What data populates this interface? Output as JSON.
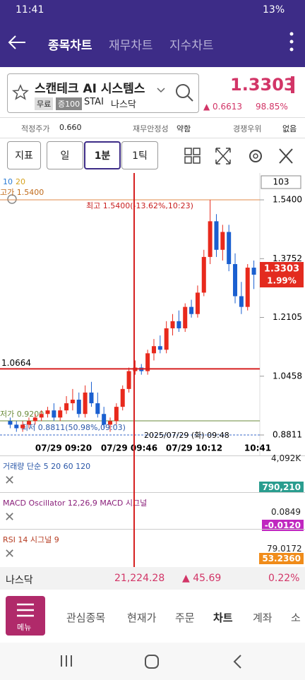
{
  "status_bar": {
    "time": "11:41",
    "battery": "13%"
  },
  "tabs": [
    "종목차트",
    "재무차트",
    "지수차트"
  ],
  "stock": {
    "name": "스캔테크 AI 시스템스",
    "badges": [
      "무료",
      "증100"
    ],
    "ticker": "STAI",
    "market": "나스닥",
    "price": "1.3303",
    "change": "▲ 0.6613",
    "change_pct": "98.85%"
  },
  "info": [
    {
      "label": "적정주가",
      "value": "0.660"
    },
    {
      "label": "재무안정성",
      "value": "약함"
    },
    {
      "label": "경쟁우위",
      "value": "없음"
    }
  ],
  "toolbar": [
    "지표",
    "일",
    "1분",
    "1틱"
  ],
  "chart": {
    "type": "candlestick",
    "count": "103",
    "ma_labels": [
      "10",
      "20"
    ],
    "high_label": "고가 1.5400",
    "high_note": "최고 1.5400(-13.62%,10:23)",
    "low_label": "저가 0.9200",
    "low_note": "최저 0.8811(50.98%,09:03)",
    "cursor_time": "2025/07/29 (화) 09:48",
    "cursor_price": 1.0664,
    "ylim": [
      0.8633,
      1.6093
    ],
    "yticks": [
      {
        "value": 1.54,
        "label": "1.5400"
      },
      1.3752,
      1.2105,
      1.0458,
      0.8811
    ],
    "xticks": [
      "07/29 09:20",
      "07/29 09:46",
      "07/29 10:12",
      "10:41"
    ],
    "candles": [
      [
        0.92,
        0.93,
        0.9,
        0.91
      ],
      [
        0.91,
        0.92,
        0.89,
        0.9
      ],
      [
        0.9,
        0.92,
        0.89,
        0.91
      ],
      [
        0.91,
        0.93,
        0.9,
        0.92
      ],
      [
        0.92,
        0.94,
        0.91,
        0.93
      ],
      [
        0.93,
        0.95,
        0.92,
        0.94
      ],
      [
        0.94,
        0.96,
        0.93,
        0.95
      ],
      [
        0.95,
        0.97,
        0.92,
        0.93
      ],
      [
        0.93,
        0.96,
        0.92,
        0.95
      ],
      [
        0.95,
        0.99,
        0.94,
        0.97
      ],
      [
        0.97,
        1.01,
        0.95,
        0.98
      ],
      [
        0.98,
        1.0,
        0.93,
        0.94
      ],
      [
        0.94,
        1.02,
        0.93,
        1.0
      ],
      [
        1.0,
        1.03,
        0.96,
        0.97
      ],
      [
        0.97,
        1.0,
        0.93,
        0.94
      ],
      [
        0.94,
        0.96,
        0.9,
        0.91
      ],
      [
        0.91,
        0.93,
        0.89,
        0.92
      ],
      [
        0.92,
        0.97,
        0.91,
        0.96
      ],
      [
        0.96,
        1.02,
        0.95,
        1.01
      ],
      [
        1.01,
        1.07,
        1.0,
        1.06
      ],
      [
        1.06,
        1.09,
        1.05,
        1.07
      ],
      [
        1.07,
        1.08,
        1.05,
        1.06
      ],
      [
        1.06,
        1.12,
        1.05,
        1.11
      ],
      [
        1.11,
        1.15,
        1.09,
        1.13
      ],
      [
        1.13,
        1.16,
        1.11,
        1.12
      ],
      [
        1.12,
        1.2,
        1.11,
        1.18
      ],
      [
        1.18,
        1.22,
        1.16,
        1.2
      ],
      [
        1.2,
        1.23,
        1.17,
        1.18
      ],
      [
        1.18,
        1.25,
        1.17,
        1.24
      ],
      [
        1.24,
        1.26,
        1.21,
        1.22
      ],
      [
        1.22,
        1.3,
        1.21,
        1.28
      ],
      [
        1.28,
        1.4,
        1.27,
        1.38
      ],
      [
        1.38,
        1.54,
        1.36,
        1.48
      ],
      [
        1.48,
        1.5,
        1.38,
        1.4
      ],
      [
        1.4,
        1.47,
        1.37,
        1.45
      ],
      [
        1.45,
        1.47,
        1.34,
        1.36
      ],
      [
        1.36,
        1.39,
        1.25,
        1.27
      ],
      [
        1.27,
        1.31,
        1.22,
        1.24
      ],
      [
        1.24,
        1.36,
        1.23,
        1.35
      ],
      [
        1.35,
        1.37,
        1.29,
        1.3303
      ]
    ],
    "last_price": "1.3303",
    "last_pct": "1.99%"
  },
  "volume": {
    "title": "거래량 단순 5 20 60 120",
    "max": "4,092K",
    "last": "790,210"
  },
  "macd": {
    "title": "MACD Oscillator 12,26,9 MACD 시그널",
    "level": "0.0849",
    "last": "-0.0120"
  },
  "rsi": {
    "title": "RSI 14 시그널 9",
    "level": "79.0172",
    "last": "53.2360"
  },
  "market": {
    "name": "나스닥",
    "index": "21,224.28",
    "change": "▲ 45.69",
    "pct": "0.22%"
  },
  "menu": {
    "button": "메뉴",
    "items": [
      "관심종목",
      "현재가",
      "주문",
      "차트",
      "계좌",
      "소"
    ]
  }
}
